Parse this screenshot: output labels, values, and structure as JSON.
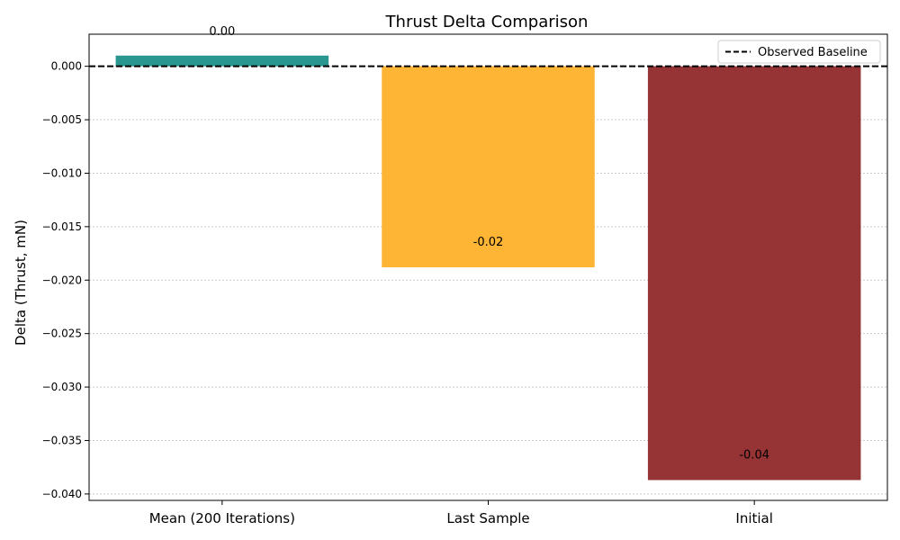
{
  "chart_data": {
    "type": "bar",
    "title": "Thrust Delta Comparison",
    "xlabel": "",
    "ylabel": "Delta (Thrust, mN)",
    "categories": [
      "Mean (200 Iterations)",
      "Last Sample",
      "Initial"
    ],
    "values": [
      0.001,
      -0.0188,
      -0.0387
    ],
    "value_labels": [
      "0.00",
      "-0.02",
      "-0.04"
    ],
    "colors": [
      "#2a9690",
      "#feb535",
      "#963334"
    ],
    "ylim": [
      -0.0406,
      0.003
    ],
    "yticks": [
      0.0,
      -0.005,
      -0.01,
      -0.015,
      -0.02,
      -0.025,
      -0.03,
      -0.035,
      -0.04
    ],
    "ytick_labels": [
      "0.000",
      "−0.005",
      "−0.010",
      "−0.015",
      "−0.020",
      "−0.025",
      "−0.030",
      "−0.035",
      "−0.040"
    ],
    "grid": "y-dotted",
    "baseline": {
      "value": 0.0,
      "label": "Observed Baseline",
      "style": "dashed",
      "color": "#000000"
    },
    "legend": {
      "position": "top-right",
      "entries": [
        "Observed Baseline"
      ]
    }
  }
}
